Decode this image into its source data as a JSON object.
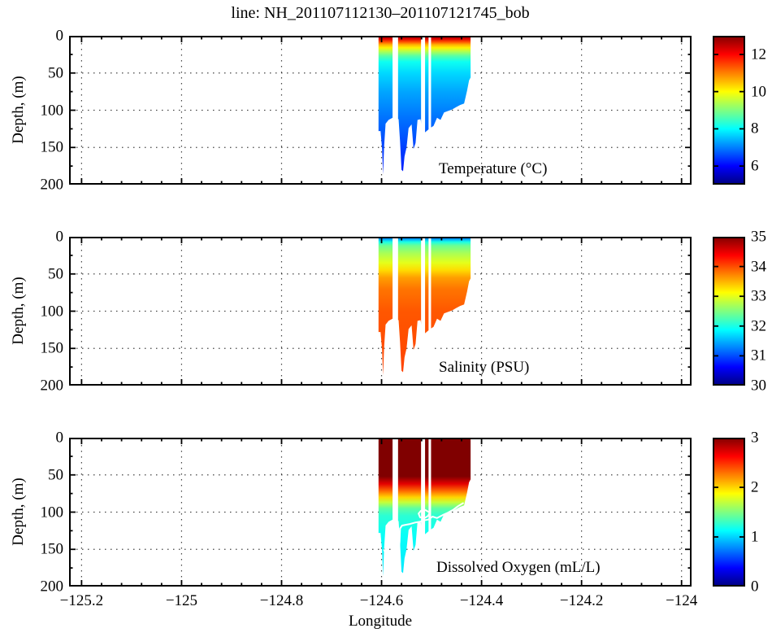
{
  "title": "line: NH_201107112130–201107121745_bob",
  "chart_data": {
    "type": "heatmap",
    "description": "Three stacked ocean section panels (depth vs longitude) with jet colormap colorbars",
    "axes": {
      "x": {
        "label": "Longitude",
        "min": -125.225,
        "max": -123.98,
        "ticks": [
          {
            "value": -125.2,
            "label": "−125.2"
          },
          {
            "value": -125.0,
            "label": "−125"
          },
          {
            "value": -124.8,
            "label": "−124.8"
          },
          {
            "value": -124.6,
            "label": "−124.6"
          },
          {
            "value": -124.4,
            "label": "−124.4"
          },
          {
            "value": -124.2,
            "label": "−124.2"
          },
          {
            "value": -124.0,
            "label": "−124"
          }
        ],
        "minor_step": 0.04,
        "grid": "dotted"
      },
      "y": {
        "label": "Depth, (m)",
        "min": 0,
        "max": 200,
        "ticks": [
          0,
          50,
          100,
          150,
          200
        ],
        "minor_ticks": [
          25,
          75,
          125,
          175
        ],
        "grid_lines": [
          50,
          100,
          150
        ],
        "direction": "down"
      }
    },
    "section": {
      "lon_start": -124.606,
      "lon_end": -124.422,
      "surface_start_depth": 2,
      "bottom_profile": [
        [
          -124.606,
          128
        ],
        [
          -124.602,
          128
        ],
        [
          -124.599,
          152
        ],
        [
          -124.597,
          186
        ],
        [
          -124.595,
          150
        ],
        [
          -124.592,
          118
        ],
        [
          -124.586,
          113
        ],
        [
          -124.578,
          110
        ],
        [
          -124.566,
          112
        ],
        [
          -124.563,
          142
        ],
        [
          -124.56,
          180
        ],
        [
          -124.557,
          182
        ],
        [
          -124.554,
          162
        ],
        [
          -124.55,
          150
        ],
        [
          -124.546,
          124
        ],
        [
          -124.54,
          119
        ],
        [
          -124.536,
          152
        ],
        [
          -124.532,
          144
        ],
        [
          -124.528,
          113
        ],
        [
          -124.522,
          112
        ],
        [
          -124.517,
          132
        ],
        [
          -124.51,
          128
        ],
        [
          -124.503,
          124
        ],
        [
          -124.496,
          121
        ],
        [
          -124.489,
          110
        ],
        [
          -124.482,
          113
        ],
        [
          -124.475,
          103
        ],
        [
          -124.467,
          101
        ],
        [
          -124.459,
          99
        ],
        [
          -124.451,
          96
        ],
        [
          -124.443,
          93
        ],
        [
          -124.435,
          91
        ],
        [
          -124.429,
          74
        ],
        [
          -124.425,
          60
        ],
        [
          -124.422,
          56
        ]
      ],
      "gaps": [
        [
          -124.578,
          -124.567
        ],
        [
          -124.521,
          -124.513
        ],
        [
          -124.506,
          -124.501
        ]
      ]
    },
    "panels": [
      {
        "type": "heatmap",
        "name": "temperature",
        "label": "Temperature (°C)",
        "colorbar": {
          "min": 5,
          "max": 13,
          "ticks": [
            6,
            8,
            10,
            12
          ]
        },
        "depth_value_profile": [
          [
            0,
            12.8
          ],
          [
            4,
            12.3
          ],
          [
            8,
            11.4
          ],
          [
            12,
            10.6
          ],
          [
            16,
            10.1
          ],
          [
            21,
            9.4
          ],
          [
            27,
            8.7
          ],
          [
            35,
            8.1
          ],
          [
            50,
            7.7
          ],
          [
            75,
            7.3
          ],
          [
            110,
            6.9
          ],
          [
            150,
            6.5
          ],
          [
            186,
            6.2
          ]
        ]
      },
      {
        "type": "heatmap",
        "name": "salinity",
        "label": "Salinity (PSU)",
        "colorbar": {
          "min": 30,
          "max": 35,
          "ticks": [
            30,
            31,
            32,
            33,
            34,
            35
          ]
        },
        "depth_value_profile": [
          [
            0,
            30.9
          ],
          [
            3,
            31.4
          ],
          [
            7,
            32.0
          ],
          [
            12,
            32.4
          ],
          [
            22,
            32.7
          ],
          [
            35,
            33.0
          ],
          [
            45,
            33.3
          ],
          [
            55,
            33.6
          ],
          [
            70,
            33.8
          ],
          [
            100,
            33.95
          ],
          [
            186,
            34.05
          ]
        ]
      },
      {
        "type": "heatmap",
        "name": "dissolved-oxygen",
        "label": "Dissolved Oxygen (mL/L)",
        "colorbar": {
          "min": 0,
          "max": 3,
          "ticks": [
            0,
            1,
            2,
            3
          ]
        },
        "depth_value_profile": [
          [
            0,
            3.2
          ],
          [
            52,
            3.05
          ],
          [
            62,
            2.7
          ],
          [
            72,
            2.3
          ],
          [
            80,
            2.0
          ],
          [
            87,
            1.7
          ],
          [
            95,
            1.4
          ],
          [
            105,
            1.25
          ],
          [
            130,
            1.15
          ],
          [
            186,
            1.05
          ]
        ],
        "contour": {
          "color": "#ffffff",
          "points": [
            [
              -124.437,
              88
            ],
            [
              -124.447,
              92
            ],
            [
              -124.457,
              97
            ],
            [
              -124.468,
              101
            ],
            [
              -124.478,
              104
            ],
            [
              -124.489,
              108
            ],
            [
              -124.498,
              106
            ],
            [
              -124.507,
              110
            ],
            [
              -124.515,
              111
            ],
            [
              -124.524,
              113
            ],
            [
              -124.533,
              114
            ],
            [
              -124.543,
              116
            ],
            [
              -124.552,
              117
            ],
            [
              -124.559,
              118
            ],
            [
              -124.563,
              122
            ],
            [
              -124.564,
              140
            ],
            [
              -124.566,
              154
            ],
            [
              -124.571,
              159
            ],
            [
              -124.579,
              161
            ],
            [
              -124.586,
              165
            ],
            [
              -124.59,
              158
            ],
            [
              -124.595,
              151
            ]
          ],
          "loop": [
            [
              -124.505,
              100
            ],
            [
              -124.513,
              97
            ],
            [
              -124.521,
              98
            ],
            [
              -124.526,
              102
            ],
            [
              -124.523,
              107
            ],
            [
              -124.514,
              108
            ],
            [
              -124.507,
              105
            ],
            [
              -124.504,
              101
            ],
            [
              -124.505,
              100
            ]
          ]
        }
      }
    ]
  },
  "colors": {
    "colormap": "jet",
    "colormap_low": "#00008f",
    "colormap_high": "#800000",
    "background": "#ffffff",
    "axis": "#000000",
    "grid": "#444444",
    "contour": "#ffffff"
  }
}
